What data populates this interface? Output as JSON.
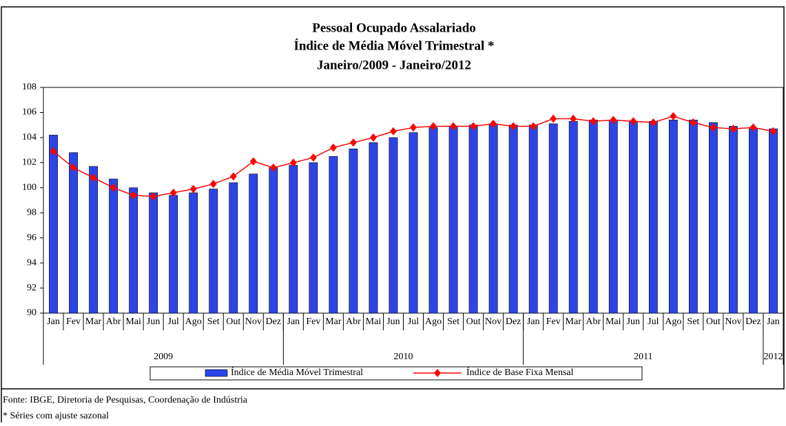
{
  "chart_data": {
    "type": "bar",
    "title": [
      "Pessoal Ocupado Assalariado",
      "Índice de Média Móvel Trimestral *",
      "Janeiro/2009 - Janeiro/2012"
    ],
    "categories": [
      "Jan",
      "Fev",
      "Mar",
      "Abr",
      "Mai",
      "Jun",
      "Jul",
      "Ago",
      "Set",
      "Out",
      "Nov",
      "Dez",
      "Jan",
      "Fev",
      "Mar",
      "Abr",
      "Mai",
      "Jun",
      "Jul",
      "Ago",
      "Set",
      "Out",
      "Nov",
      "Dez",
      "Jan",
      "Fev",
      "Mar",
      "Abr",
      "Mai",
      "Jun",
      "Jul",
      "Ago",
      "Set",
      "Out",
      "Nov",
      "Dez",
      "Jan"
    ],
    "x_groups": [
      "2009",
      "2010",
      "2011",
      "2012"
    ],
    "series": [
      {
        "name": "Índice de Média Móvel Trimestral",
        "type": "bar",
        "color": "#2b45e6",
        "values": [
          104.2,
          102.8,
          101.7,
          100.7,
          100.0,
          99.6,
          99.4,
          99.6,
          99.9,
          100.4,
          101.1,
          101.6,
          101.8,
          102.0,
          102.5,
          103.1,
          103.6,
          104.0,
          104.4,
          104.8,
          104.9,
          105.0,
          105.1,
          105.0,
          105.0,
          105.1,
          105.3,
          105.4,
          105.4,
          105.3,
          105.3,
          105.4,
          105.4,
          105.2,
          104.9,
          104.7,
          104.7
        ]
      },
      {
        "name": "Índice de Base Fixa Mensal",
        "type": "line",
        "color": "#ff0000",
        "values": [
          102.9,
          101.6,
          100.8,
          100.0,
          99.4,
          99.3,
          99.6,
          99.9,
          100.3,
          100.9,
          102.1,
          101.6,
          102.0,
          102.4,
          103.2,
          103.6,
          104.0,
          104.5,
          104.8,
          104.9,
          104.9,
          104.9,
          105.1,
          104.9,
          104.9,
          105.5,
          105.5,
          105.3,
          105.4,
          105.3,
          105.2,
          105.7,
          105.2,
          104.8,
          104.7,
          104.8,
          104.5
        ]
      }
    ],
    "ylim": [
      90,
      108
    ],
    "yticks": [
      90,
      92,
      94,
      96,
      98,
      100,
      102,
      104,
      106,
      108
    ],
    "notes": [
      "Fonte: IBGE, Diretoria de Pesquisas, Coordenação de Indústria",
      "* Séries com ajuste sazonal"
    ]
  }
}
